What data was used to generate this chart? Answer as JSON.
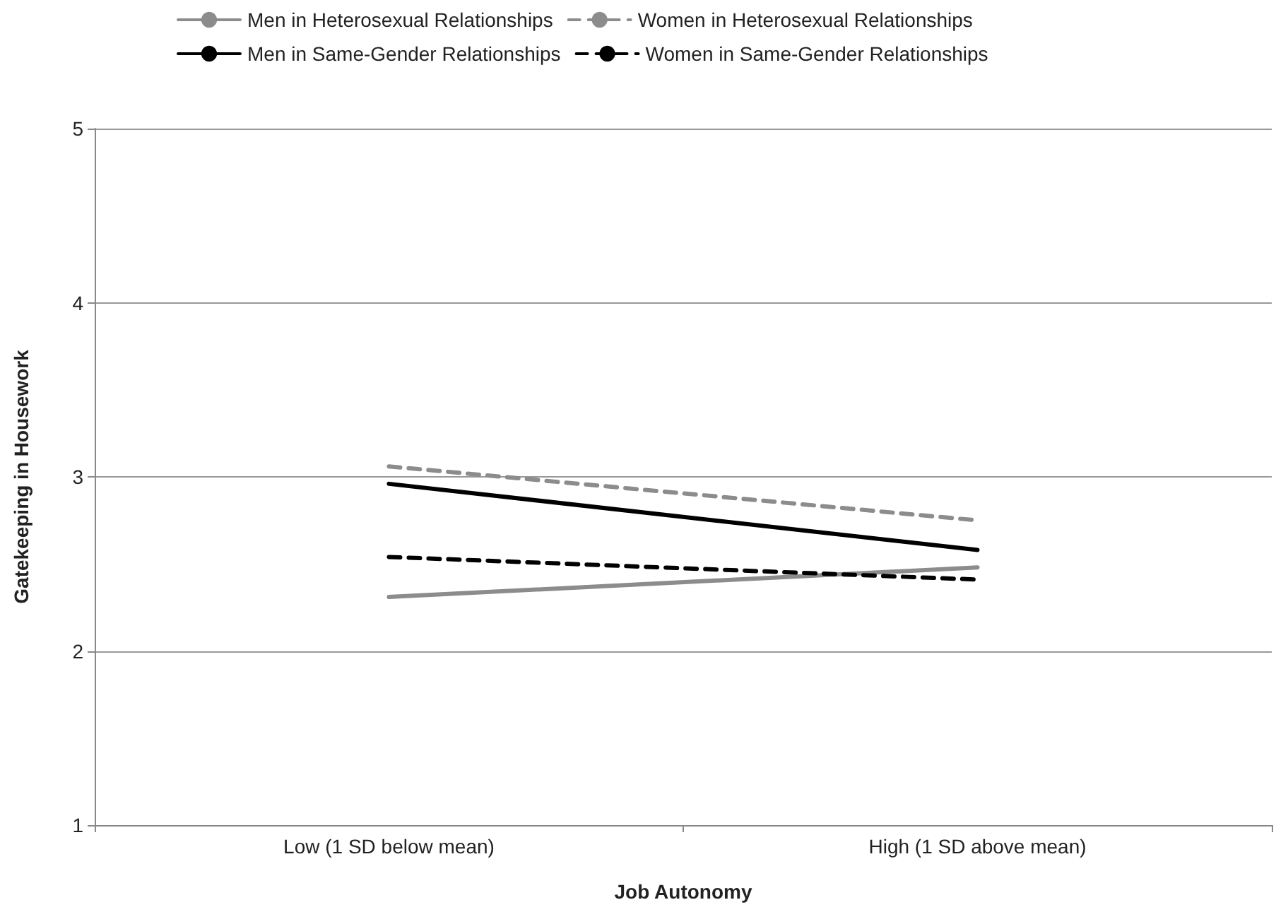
{
  "chart_data": {
    "type": "line",
    "xlabel": "Job Autonomy",
    "ylabel": "Gatekeeping in Housework",
    "categories": [
      "Low (1 SD below mean)",
      "High (1 SD above mean)"
    ],
    "series": [
      {
        "name": "Men in Heterosexual Relationships",
        "color": "#8c8c8c",
        "line_style": "solid",
        "values": [
          2.31,
          2.48
        ]
      },
      {
        "name": "Women in Heterosexual Relationships",
        "color": "#8c8c8c",
        "line_style": "dashed",
        "values": [
          3.06,
          2.75
        ]
      },
      {
        "name": "Men in Same-Gender Relationships",
        "color": "#000000",
        "line_style": "solid",
        "values": [
          2.96,
          2.58
        ]
      },
      {
        "name": "Women in Same-Gender Relationships",
        "color": "#000000",
        "line_style": "dashed",
        "values": [
          2.54,
          2.41
        ]
      }
    ],
    "ylim": [
      1,
      5
    ],
    "yticks": [
      1,
      2,
      3,
      4,
      5
    ],
    "grid": "y",
    "legend": "top",
    "marker": "none"
  }
}
